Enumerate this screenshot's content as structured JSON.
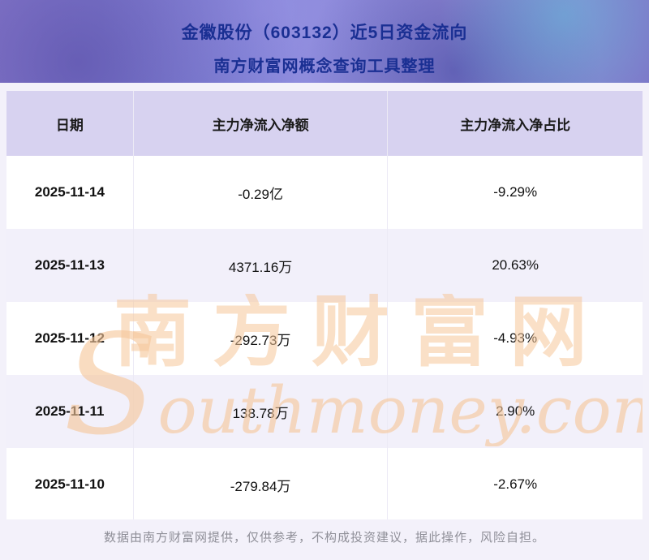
{
  "header": {
    "title_line1": "金徽股份（603132）近5日资金流向",
    "title_line2": "南方财富网概念查询工具整理"
  },
  "table": {
    "headers": [
      "日期",
      "主力净流入净额",
      "主力净流入净占比"
    ],
    "rows": [
      [
        "2025-11-14",
        "-0.29亿",
        "-9.29%"
      ],
      [
        "2025-11-13",
        "4371.16万",
        "20.63%"
      ],
      [
        "2025-11-12",
        "-292.73万",
        "-4.93%"
      ],
      [
        "2025-11-11",
        "138.78万",
        "2.90%"
      ],
      [
        "2025-11-10",
        "-279.84万",
        "-2.67%"
      ]
    ]
  },
  "watermark": {
    "cn": "南方财富网",
    "en": "Southmoney.com"
  },
  "footer": {
    "text": "数据由南方财富网提供，仅供参考，不构成投资建议，据此操作，风险自担。"
  },
  "colors": {
    "title_text": "#1a2f93",
    "header_row_bg": "#d7d2f0",
    "alt_row_bg": "#f2f0fa",
    "watermark": "#f6c799",
    "footer_text": "#8f8f98"
  },
  "chart_data": {
    "type": "table",
    "title": "金徽股份（603132）近5日资金流向",
    "subtitle": "南方财富网概念查询工具整理",
    "columns": [
      "日期",
      "主力净流入净额",
      "主力净流入净占比"
    ],
    "rows": [
      {
        "date": "2025-11-14",
        "net_inflow": "-0.29亿",
        "net_inflow_ratio_pct": -9.29
      },
      {
        "date": "2025-11-13",
        "net_inflow": "4371.16万",
        "net_inflow_ratio_pct": 20.63
      },
      {
        "date": "2025-11-12",
        "net_inflow": "-292.73万",
        "net_inflow_ratio_pct": -4.93
      },
      {
        "date": "2025-11-11",
        "net_inflow": "138.78万",
        "net_inflow_ratio_pct": 2.9
      },
      {
        "date": "2025-11-10",
        "net_inflow": "-279.84万",
        "net_inflow_ratio_pct": -2.67
      }
    ]
  }
}
